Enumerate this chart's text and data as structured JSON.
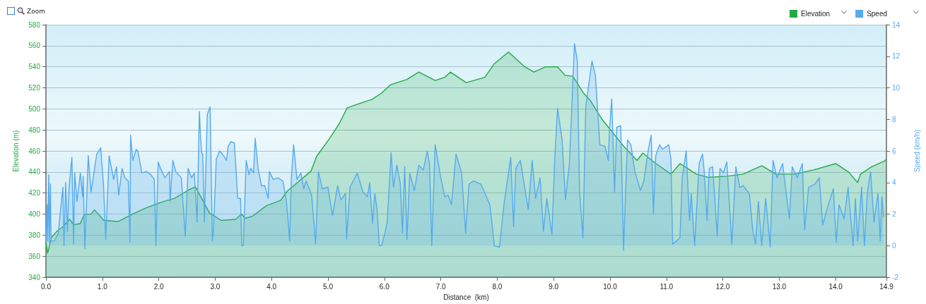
{
  "chart_data": {
    "type": "area",
    "xlabel": "Distance  (km)",
    "ylabel": "Elevation (m)",
    "y2label": "Speed (km/h)",
    "annotations": [
      "Zoom"
    ],
    "xlim": [
      0,
      14.9
    ],
    "xticks": [
      {
        "value": 0,
        "label": "0.0"
      },
      {
        "value": 1,
        "label": "1.0"
      },
      {
        "value": 2,
        "label": "2.0"
      },
      {
        "value": 3,
        "label": "3.0"
      },
      {
        "value": 4,
        "label": "4.0"
      },
      {
        "value": 5,
        "label": "5.0"
      },
      {
        "value": 6,
        "label": "6.0"
      },
      {
        "value": 7,
        "label": "7.0"
      },
      {
        "value": 8,
        "label": "8.0"
      },
      {
        "value": 9,
        "label": "9.0"
      },
      {
        "value": 10,
        "label": "10.0"
      },
      {
        "value": 11,
        "label": "11.0"
      },
      {
        "value": 12,
        "label": "12.0"
      },
      {
        "value": 13,
        "label": "13.0"
      },
      {
        "value": 14,
        "label": "14.0"
      },
      {
        "value": 14.9,
        "label": "14.9"
      }
    ],
    "ylim": [
      340,
      580
    ],
    "yticks": [
      340,
      360,
      380,
      400,
      420,
      440,
      460,
      480,
      500,
      520,
      540,
      560,
      580
    ],
    "y2lim": [
      -2,
      14
    ],
    "y2ticks": [
      -2,
      0,
      2,
      4,
      6,
      8,
      10,
      12,
      14
    ],
    "grid": "y",
    "legend": "top right",
    "series": [
      {
        "name": "Elevation",
        "color": "#22aa44",
        "x": [
          0,
          0.03,
          0.1,
          0.2,
          0.3,
          0.42,
          0.49,
          0.61,
          0.68,
          0.8,
          0.86,
          1.03,
          1.28,
          1.53,
          1.78,
          2.03,
          2.28,
          2.53,
          2.65,
          2.78,
          2.9,
          3.11,
          3.36,
          3.47,
          3.53,
          3.66,
          3.91,
          4.16,
          4.28,
          4.57,
          4.7,
          4.8,
          5.03,
          5.2,
          5.34,
          5.61,
          5.78,
          5.95,
          6.11,
          6.4,
          6.61,
          6.9,
          7.07,
          7.17,
          7.45,
          7.78,
          7.95,
          8.2,
          8.49,
          8.65,
          8.86,
          9.07,
          9.2,
          9.34,
          9.53,
          9.65,
          9.86,
          10.04,
          10.25,
          10.48,
          10.58,
          10.79,
          11.08,
          11.24,
          11.53,
          11.74,
          12.07,
          12.36,
          12.69,
          12.94,
          13.27,
          13.61,
          14.0,
          14.23,
          14.39,
          14.44,
          14.64,
          14.85,
          14.9
        ],
        "values": [
          374,
          363,
          378,
          384,
          388,
          395,
          390,
          391,
          400,
          400,
          404,
          394,
          393,
          400,
          406,
          411,
          415,
          423,
          426,
          413,
          401,
          394,
          395,
          400,
          396,
          398,
          408,
          413,
          422,
          435,
          441,
          455,
          472,
          486,
          501,
          506,
          509,
          515,
          523,
          528,
          535,
          527,
          530,
          535,
          525,
          530,
          543,
          554,
          540,
          535,
          540,
          540,
          532,
          531,
          515,
          508,
          490,
          478,
          464,
          451,
          458,
          449,
          438,
          448,
          438,
          435,
          436,
          438,
          446,
          438,
          438,
          442,
          448,
          440,
          430,
          438,
          445,
          450,
          452
        ]
      },
      {
        "name": "Speed",
        "color": "#55aaee",
        "axis": "y2",
        "x": [
          0,
          0.02,
          0.03,
          0.05,
          0.06,
          0.08,
          0.09,
          0.15,
          0.22,
          0.26,
          0.3,
          0.32,
          0.35,
          0.38,
          0.41,
          0.46,
          0.49,
          0.51,
          0.55,
          0.61,
          0.65,
          0.66,
          0.69,
          0.75,
          0.8,
          0.85,
          0.9,
          0.97,
          1.02,
          1.06,
          1.12,
          1.2,
          1.25,
          1.29,
          1.35,
          1.4,
          1.46,
          1.49,
          1.5,
          1.54,
          1.6,
          1.63,
          1.7,
          1.78,
          1.86,
          1.92,
          1.95,
          1.99,
          2.03,
          2.11,
          2.19,
          2.2,
          2.25,
          2.3,
          2.4,
          2.47,
          2.52,
          2.58,
          2.63,
          2.68,
          2.72,
          2.74,
          2.76,
          2.78,
          2.81,
          2.86,
          2.91,
          2.95,
          2.97,
          3.02,
          3.08,
          3.15,
          3.2,
          3.23,
          3.28,
          3.34,
          3.4,
          3.45,
          3.47,
          3.5,
          3.55,
          3.6,
          3.63,
          3.68,
          3.71,
          3.76,
          3.82,
          3.88,
          3.94,
          3.96,
          4.03,
          4.11,
          4.2,
          4.26,
          4.29,
          4.32,
          4.35,
          4.39,
          4.45,
          4.52,
          4.57,
          4.61,
          4.67,
          4.71,
          4.78,
          4.83,
          4.9,
          5,
          5.08,
          5.17,
          5.23,
          5.31,
          5.33,
          5.39,
          5.52,
          5.62,
          5.7,
          5.74,
          5.79,
          5.83,
          5.87,
          5.91,
          5.95,
          6.01,
          6.05,
          6.12,
          6.16,
          6.22,
          6.28,
          6.32,
          6.36,
          6.4,
          6.45,
          6.53,
          6.61,
          6.69,
          6.76,
          6.8,
          6.84,
          6.9,
          7,
          7.07,
          7.13,
          7.19,
          7.27,
          7.37,
          7.44,
          7.5,
          7.58,
          7.71,
          7.81,
          7.87,
          7.95,
          8.04,
          8.12,
          8.24,
          8.29,
          8.33,
          8.41,
          8.55,
          8.62,
          8.68,
          8.76,
          8.82,
          8.88,
          8.97,
          9.02,
          9.07,
          9.15,
          9.21,
          9.28,
          9.37,
          9.42,
          9.46,
          9.52,
          9.57,
          9.68,
          9.74,
          9.82,
          9.91,
          9.97,
          9.99,
          10.03,
          10.08,
          10.12,
          10.19,
          10.24,
          10.31,
          10.37,
          10.44,
          10.54,
          10.6,
          10.68,
          10.73,
          10.77,
          10.81,
          10.88,
          10.93,
          11.04,
          11.08,
          11.11,
          11.18,
          11.24,
          11.28,
          11.35,
          11.41,
          11.44,
          11.5,
          11.58,
          11.64,
          11.67,
          11.72,
          11.76,
          11.82,
          11.9,
          11.95,
          12.01,
          12.07,
          12.16,
          12.23,
          12.3,
          12.36,
          12.47,
          12.53,
          12.58,
          12.63,
          12.69,
          12.76,
          12.84,
          12.89,
          12.96,
          13.06,
          13.11,
          13.18,
          13.23,
          13.32,
          13.41,
          13.45,
          13.52,
          13.63,
          13.71,
          13.77,
          13.86,
          13.96,
          14.01,
          14.06,
          14.15,
          14.22,
          14.31,
          14.35,
          14.39,
          14.46,
          14.51,
          14.56,
          14.62,
          14.68,
          14.75,
          14.79,
          14.82,
          14.85
        ],
        "values": [
          0.3,
          2.6,
          0.3,
          4.5,
          0.2,
          3.9,
          0.3,
          0.3,
          0.8,
          2.3,
          3.7,
          0,
          4,
          0.9,
          3.7,
          5.6,
          0.1,
          4.6,
          2.8,
          4.6,
          3.1,
          4.4,
          -0.2,
          5.7,
          3.4,
          4.6,
          5.8,
          6.2,
          3.9,
          0.4,
          5.7,
          4.2,
          5,
          3.2,
          4.9,
          4.3,
          4.1,
          0.2,
          7,
          5.4,
          6.1,
          6,
          4.6,
          4.7,
          4.5,
          4.2,
          0,
          5.3,
          4.9,
          4.3,
          4.7,
          2.8,
          5.4,
          4.7,
          4.3,
          0.6,
          4.9,
          4.3,
          4.6,
          1.5,
          8.5,
          7,
          5.9,
          5.8,
          1.5,
          8.3,
          8.8,
          0.3,
          0.9,
          5.5,
          6,
          5.7,
          5.4,
          6.3,
          6.6,
          6.5,
          3,
          3,
          0,
          0,
          5.4,
          4.5,
          4.9,
          4.6,
          6.8,
          4.9,
          3.8,
          3.8,
          3,
          4.7,
          4.2,
          4.3,
          4.1,
          2.9,
          1.7,
          0.3,
          4.2,
          6.4,
          4.2,
          4.6,
          3.6,
          4.1,
          3.6,
          3.2,
          0.1,
          4.7,
          3.6,
          3.7,
          1.9,
          3.8,
          2.9,
          3.3,
          0.4,
          3.7,
          4.6,
          3.4,
          3.1,
          4,
          1.4,
          3.3,
          2.3,
          0,
          0,
          0.8,
          1.5,
          5.9,
          3.7,
          5.1,
          4,
          0.8,
          5,
          0.4,
          4.6,
          3.5,
          5.1,
          4.8,
          6,
          5.2,
          0,
          6.4,
          4.3,
          3.1,
          3.2,
          2.6,
          5.8,
          4.6,
          0.8,
          3.9,
          4.1,
          3.9,
          3.1,
          2.6,
          0,
          -0.1,
          2.6,
          5.6,
          1.2,
          4.9,
          5.4,
          2.3,
          5.4,
          3,
          4.3,
          0.9,
          3,
          0.7,
          5.5,
          8.7,
          6.7,
          2.9,
          5.2,
          12.8,
          11.7,
          3.4,
          0.5,
          8.8,
          11.7,
          10.8,
          6.4,
          6.3,
          5.4,
          7.3,
          9.3,
          3.4,
          7.5,
          7.6,
          -0.3,
          6.7,
          6.4,
          4.7,
          3.5,
          4.1,
          6.1,
          7,
          2,
          5.7,
          6.4,
          6.1,
          6.4,
          5.5,
          0.1,
          0.3,
          0.5,
          4.3,
          6,
          1.6,
          3.3,
          0,
          5.2,
          5.8,
          4.7,
          1.6,
          4.9,
          5,
          0.6,
          4.9,
          4.6,
          5.3,
          0.1,
          5,
          3.7,
          3.8,
          3.3,
          1,
          0.1,
          2.8,
          0,
          3,
          -0.1,
          5.4,
          4.3,
          5.2,
          3.7,
          1.7,
          5,
          4.3,
          5.2,
          1,
          3.7,
          3.9,
          4.3,
          1.3,
          2.5,
          3.6,
          0.2,
          2.6,
          1.7,
          3.7,
          0,
          3,
          0.3,
          3.7,
          0,
          3.3,
          4.7,
          1.5,
          3.3,
          0.3,
          3.1,
          1.8
        ]
      }
    ]
  }
}
